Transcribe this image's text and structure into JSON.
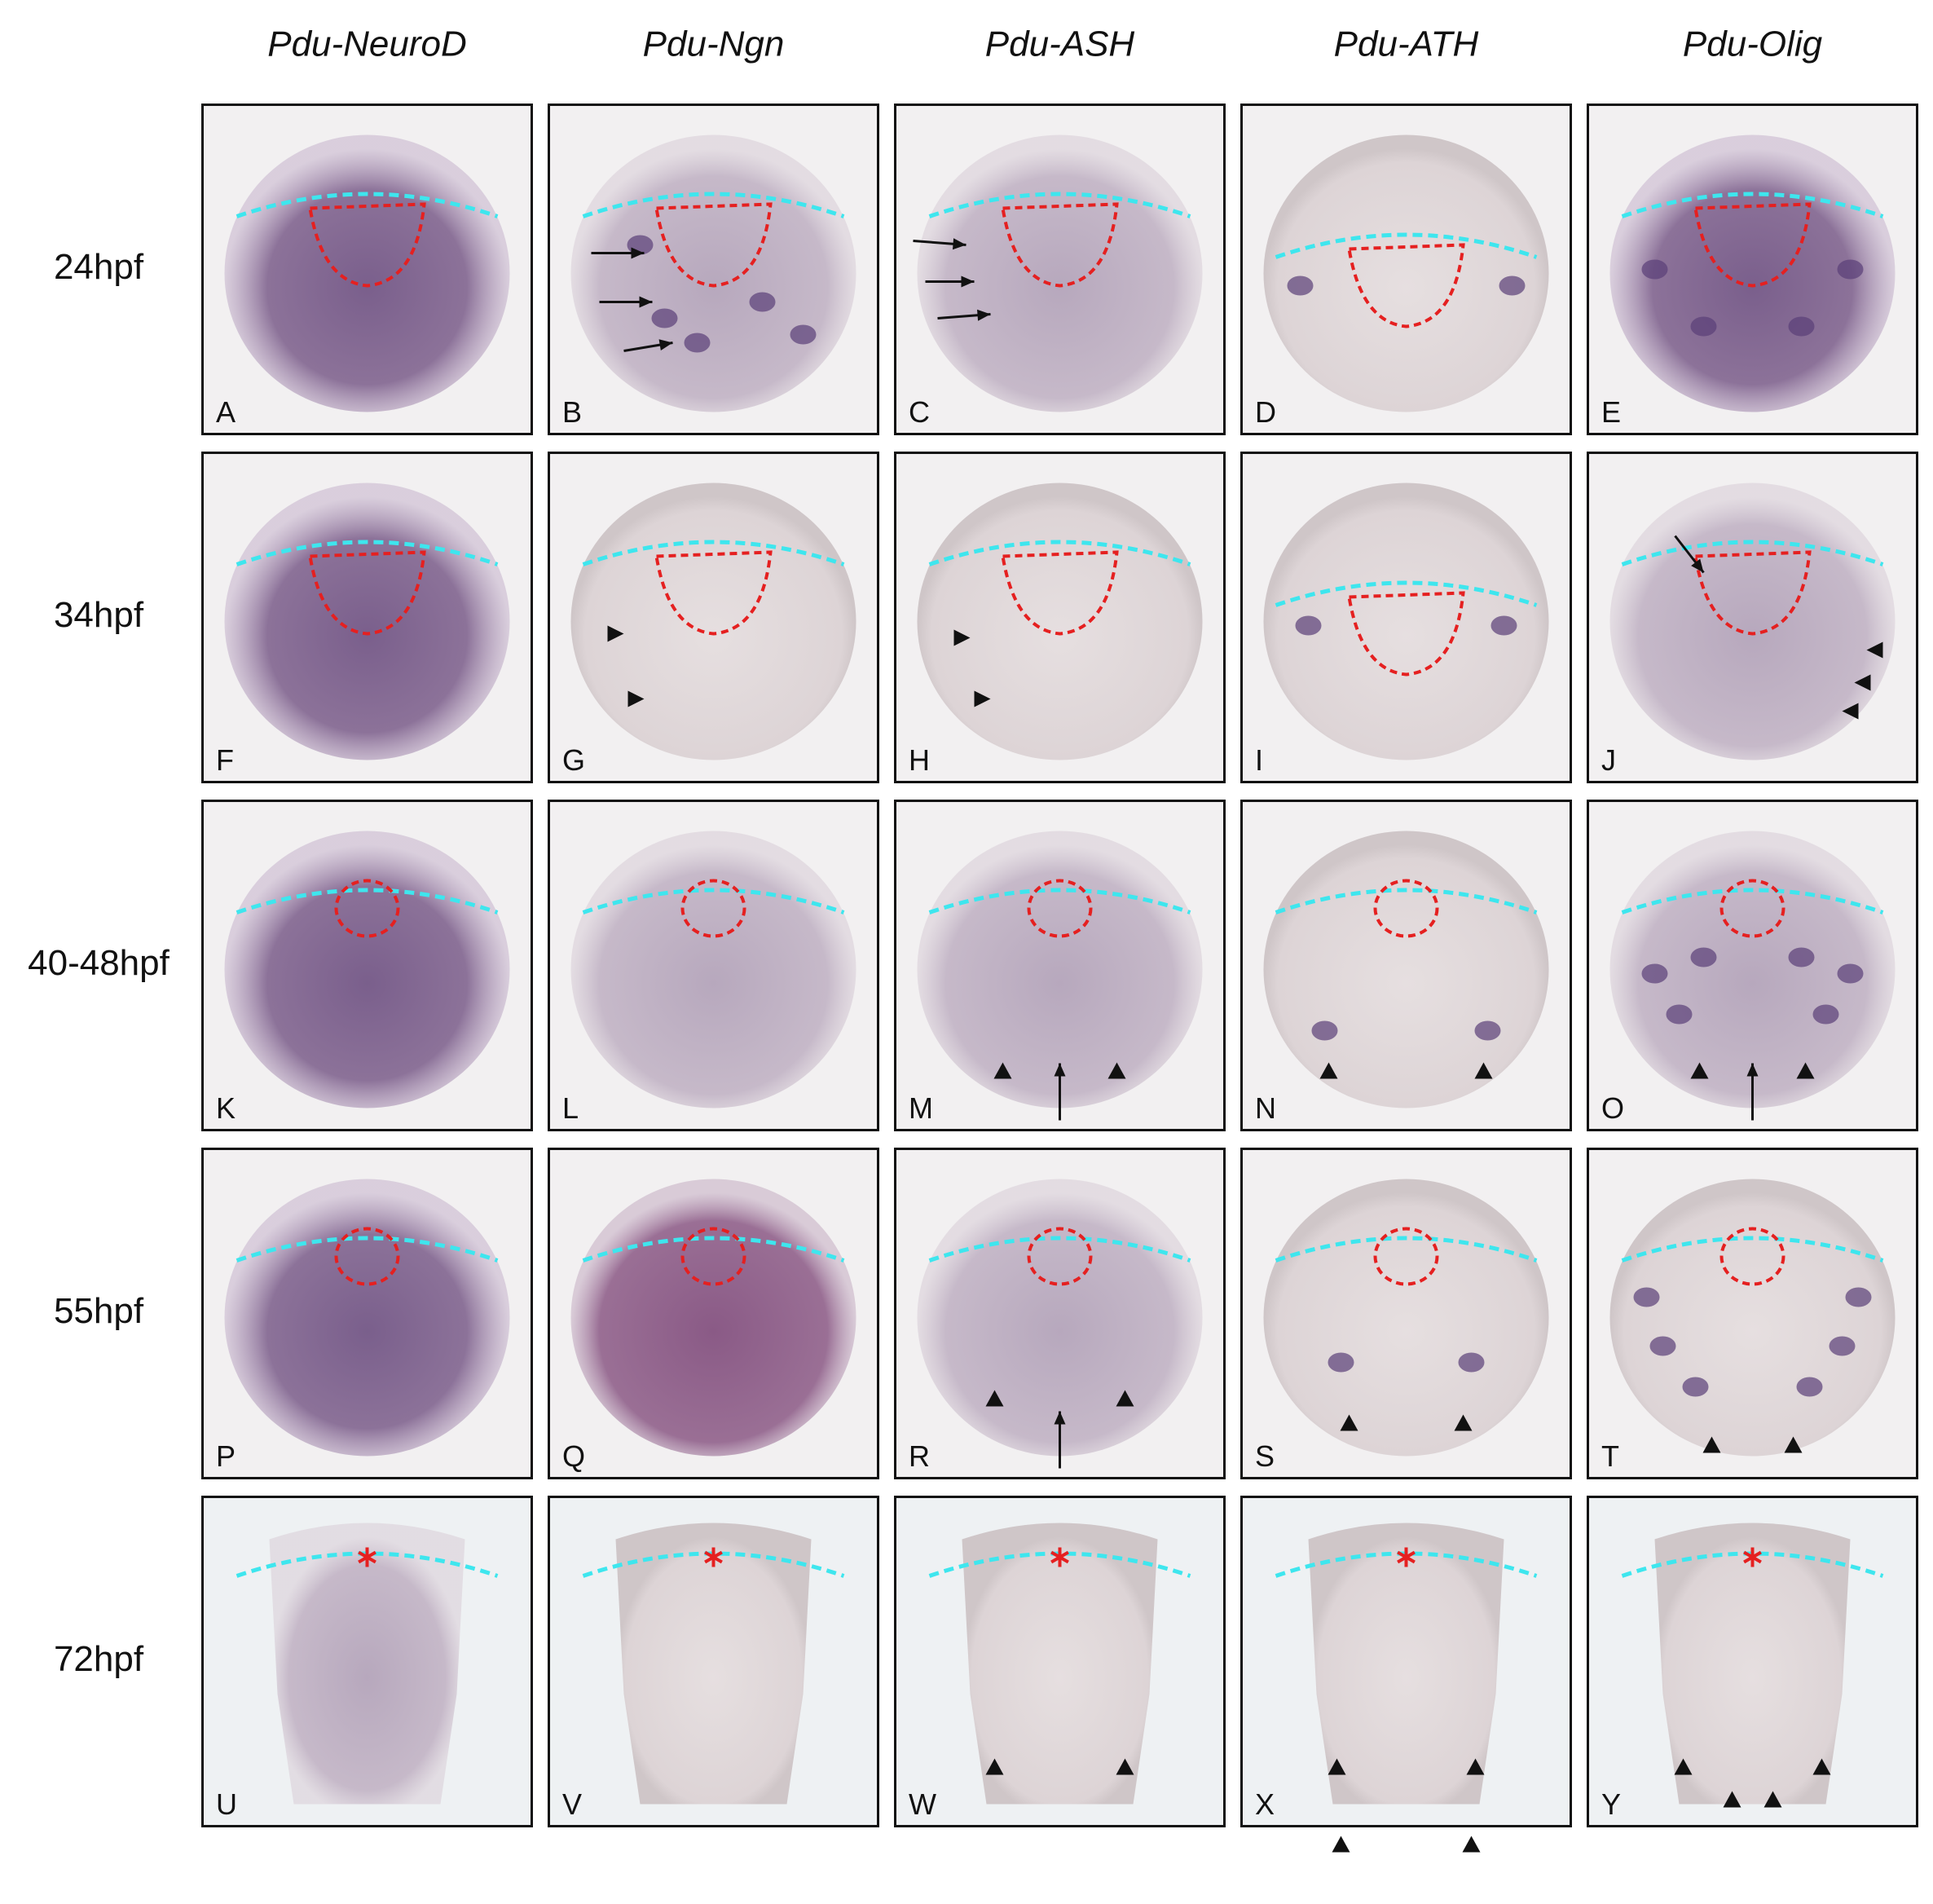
{
  "column_headers": [
    "Pdu-NeuroD",
    "Pdu-Ngn",
    "Pdu-ASH",
    "Pdu-ATH",
    "Pdu-Olig"
  ],
  "row_labels": [
    "24hpf",
    "34hpf",
    "40-48hpf",
    "55hpf",
    "72hpf"
  ],
  "panel_labels": [
    "A",
    "B",
    "C",
    "D",
    "E",
    "F",
    "G",
    "H",
    "I",
    "J",
    "K",
    "L",
    "M",
    "N",
    "O",
    "P",
    "Q",
    "R",
    "S",
    "T",
    "U",
    "V",
    "W",
    "X",
    "Y"
  ]
}
